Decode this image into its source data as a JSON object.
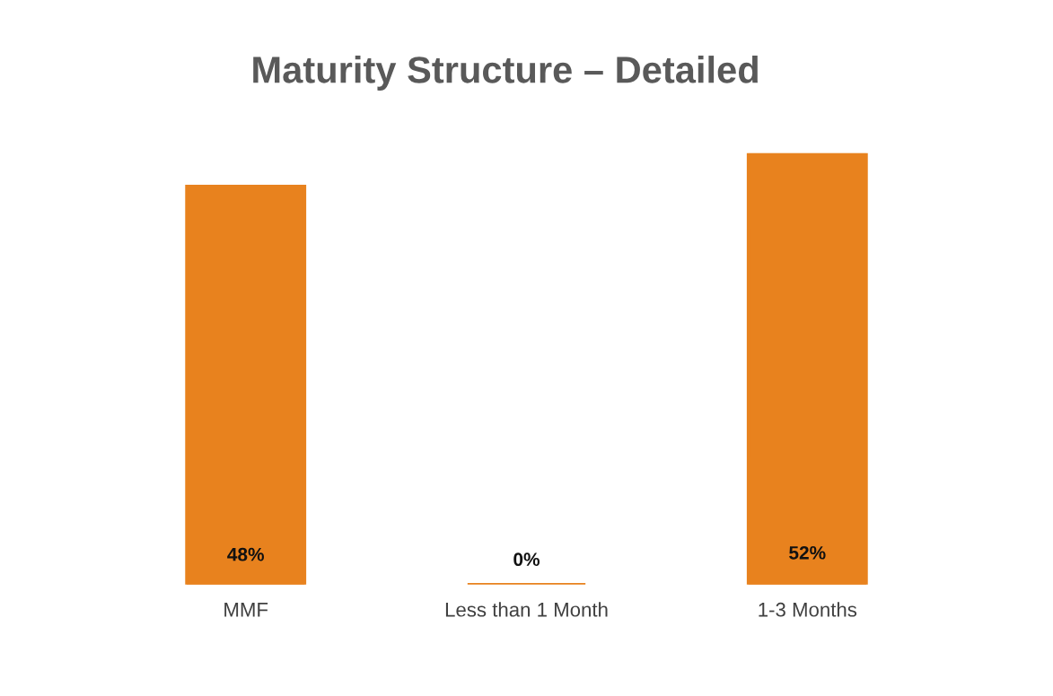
{
  "chart_data": {
    "type": "bar",
    "title": "Maturity Structure – Detailed",
    "categories": [
      "MMF",
      "Less than 1 Month",
      "1-3 Months"
    ],
    "values": [
      48,
      0,
      52
    ],
    "value_labels": [
      "48%",
      "0%",
      "52%"
    ],
    "color": "#e8821e",
    "grid": false,
    "legend": false
  }
}
